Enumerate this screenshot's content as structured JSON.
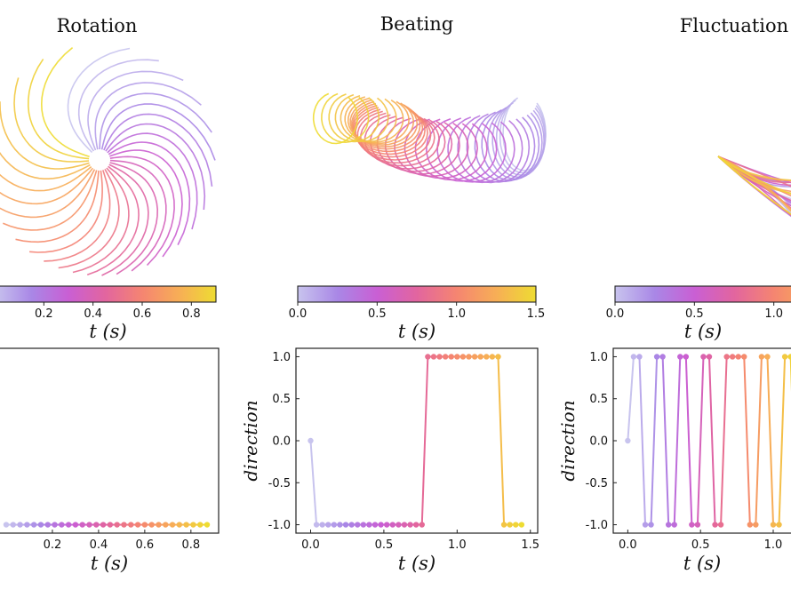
{
  "palette": {
    "colormap": [
      "#c8c4ee",
      "#a987e6",
      "#c95fd4",
      "#e2659f",
      "#f58571",
      "#f7ae56",
      "#eedc32"
    ],
    "frame": "#222222",
    "text": "#111111"
  },
  "chart_data": [
    {
      "type": "line",
      "subtype": "trajectory-snapshots",
      "title": "Rotation",
      "pattern": "rotation",
      "colorbar": {
        "label": "t (s)",
        "ticks": [
          0.2,
          0.4,
          0.6,
          0.8
        ],
        "tick_labels": [
          "0.2",
          "0.4",
          "0.6",
          "0.8"
        ],
        "range": [
          0.0,
          0.9
        ]
      },
      "direction_plot": {
        "xlabel": "t (s)",
        "ylabel": "",
        "xlim": [
          -0.05,
          0.92
        ],
        "ylim": [
          -1.1,
          1.1
        ],
        "x_ticks": [
          0.2,
          0.4,
          0.6,
          0.8
        ],
        "x_tick_labels": [
          "0.2",
          "0.4",
          "0.6",
          "0.8"
        ],
        "y_ticks": [],
        "y_tick_labels": [],
        "t": [
          0.0,
          0.03,
          0.06,
          0.09,
          0.12,
          0.15,
          0.18,
          0.21,
          0.24,
          0.27,
          0.3,
          0.33,
          0.36,
          0.39,
          0.42,
          0.45,
          0.48,
          0.51,
          0.54,
          0.57,
          0.6,
          0.63,
          0.66,
          0.69,
          0.72,
          0.75,
          0.78,
          0.81,
          0.84,
          0.87
        ],
        "direction": [
          -1,
          -1,
          -1,
          -1,
          -1,
          -1,
          -1,
          -1,
          -1,
          -1,
          -1,
          -1,
          -1,
          -1,
          -1,
          -1,
          -1,
          -1,
          -1,
          -1,
          -1,
          -1,
          -1,
          -1,
          -1,
          -1,
          -1,
          -1,
          -1,
          -1
        ]
      }
    },
    {
      "type": "line",
      "subtype": "trajectory-snapshots",
      "title": "Beating",
      "pattern": "beating",
      "colorbar": {
        "label": "t (s)",
        "ticks": [
          0.0,
          0.5,
          1.0,
          1.5
        ],
        "tick_labels": [
          "0.0",
          "0.5",
          "1.0",
          "1.5"
        ],
        "range": [
          0.0,
          1.5
        ]
      },
      "direction_plot": {
        "xlabel": "t (s)",
        "ylabel": "direction",
        "xlim": [
          -0.1,
          1.55
        ],
        "ylim": [
          -1.1,
          1.1
        ],
        "x_ticks": [
          0.0,
          0.5,
          1.0,
          1.5
        ],
        "x_tick_labels": [
          "0.0",
          "0.5",
          "1.0",
          "1.5"
        ],
        "y_ticks": [
          1.0,
          0.5,
          0.0,
          -0.5,
          -1.0
        ],
        "y_tick_labels": [
          "1.0",
          "0.5",
          "0.0",
          "-0.5",
          "-1.0"
        ],
        "t": [
          0.0,
          0.04,
          0.08,
          0.12,
          0.16,
          0.2,
          0.24,
          0.28,
          0.32,
          0.36,
          0.4,
          0.44,
          0.48,
          0.52,
          0.56,
          0.6,
          0.64,
          0.68,
          0.72,
          0.76,
          0.8,
          0.84,
          0.88,
          0.92,
          0.96,
          1.0,
          1.04,
          1.08,
          1.12,
          1.16,
          1.2,
          1.24,
          1.28,
          1.32,
          1.36,
          1.4,
          1.44
        ],
        "direction": [
          0,
          -1,
          -1,
          -1,
          -1,
          -1,
          -1,
          -1,
          -1,
          -1,
          -1,
          -1,
          -1,
          -1,
          -1,
          -1,
          -1,
          -1,
          -1,
          -1,
          1,
          1,
          1,
          1,
          1,
          1,
          1,
          1,
          1,
          1,
          1,
          1,
          1,
          -1,
          -1,
          -1,
          -1
        ]
      }
    },
    {
      "type": "line",
      "subtype": "trajectory-snapshots",
      "title": "Fluctuation",
      "pattern": "fluctuation",
      "colorbar": {
        "label": "t (s)",
        "ticks": [
          0.0,
          0.5,
          1.0
        ],
        "tick_labels": [
          "0.0",
          "0.5",
          "1.0"
        ],
        "range": [
          0.0,
          1.5
        ]
      },
      "direction_plot": {
        "xlabel": "t (s)",
        "ylabel": "direction",
        "xlim": [
          -0.1,
          1.55
        ],
        "ylim": [
          -1.1,
          1.1
        ],
        "x_ticks": [
          0.0,
          0.5,
          1.0
        ],
        "x_tick_labels": [
          "0.0",
          "0.5",
          "1.0"
        ],
        "y_ticks": [
          1.0,
          0.5,
          0.0,
          -0.5,
          -1.0
        ],
        "y_tick_labels": [
          "1.0",
          "0.5",
          "0.0",
          "-0.5",
          "-1.0"
        ],
        "t": [
          0.0,
          0.04,
          0.08,
          0.12,
          0.16,
          0.2,
          0.24,
          0.28,
          0.32,
          0.36,
          0.4,
          0.44,
          0.48,
          0.52,
          0.56,
          0.6,
          0.64,
          0.68,
          0.72,
          0.76,
          0.8,
          0.84,
          0.88,
          0.92,
          0.96,
          1.0,
          1.04,
          1.08,
          1.12,
          1.16
        ],
        "direction": [
          0,
          1,
          1,
          -1,
          -1,
          1,
          1,
          -1,
          -1,
          1,
          1,
          -1,
          -1,
          1,
          1,
          -1,
          -1,
          1,
          1,
          1,
          1,
          -1,
          -1,
          1,
          1,
          -1,
          -1,
          1,
          1,
          -1
        ]
      }
    }
  ]
}
